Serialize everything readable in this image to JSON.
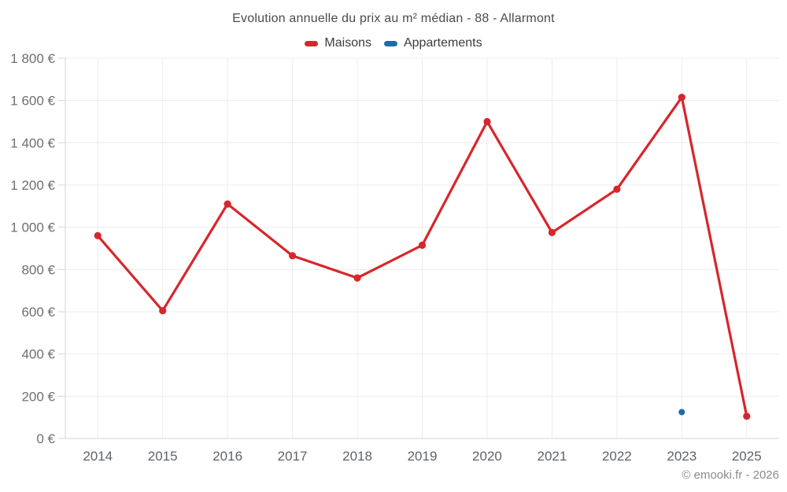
{
  "title": "Evolution annuelle du prix au m² médian - 88 - Allarmont",
  "watermark": "© emooki.fr - 2026",
  "legend": [
    {
      "label": "Maisons",
      "color": "#d7262c"
    },
    {
      "label": "Appartements",
      "color": "#1a6da6"
    }
  ],
  "colors": {
    "maisons": "#d7262c",
    "appartements": "#1a6da6",
    "gridline": "#ececec",
    "axis_line": "#d6d6d6",
    "y_tick_label": "#6f6f6f",
    "x_tick_label": "#5f6368",
    "title_text": "#4c4c4c",
    "legend_text": "#3c3c3c",
    "watermark_text": "#8a8a8a",
    "background": "#ffffff"
  },
  "chart_data": {
    "type": "line",
    "title": "Evolution annuelle du prix au m² médian - 88 - Allarmont",
    "categories": [
      "2014",
      "2015",
      "2016",
      "2017",
      "2018",
      "2019",
      "2020",
      "2021",
      "2022",
      "2023",
      "2025"
    ],
    "series": [
      {
        "name": "Maisons",
        "color": "#d7262c",
        "values": [
          960,
          605,
          1110,
          865,
          760,
          915,
          1500,
          975,
          1180,
          1615,
          105
        ]
      },
      {
        "name": "Appartements",
        "color": "#1a6da6",
        "values": [
          null,
          null,
          null,
          null,
          null,
          null,
          null,
          null,
          null,
          125,
          null
        ]
      }
    ],
    "xlabel": "",
    "ylabel": "",
    "ylim": [
      0,
      1800
    ],
    "y_tick_step": 200,
    "y_tick_labels": [
      "0 €",
      "200 €",
      "400 €",
      "600 €",
      "800 €",
      "1 000 €",
      "1 200 €",
      "1 400 €",
      "1 600 €",
      "1 800 €"
    ],
    "grid": true,
    "legend_position": "top",
    "currency_suffix": " €"
  }
}
